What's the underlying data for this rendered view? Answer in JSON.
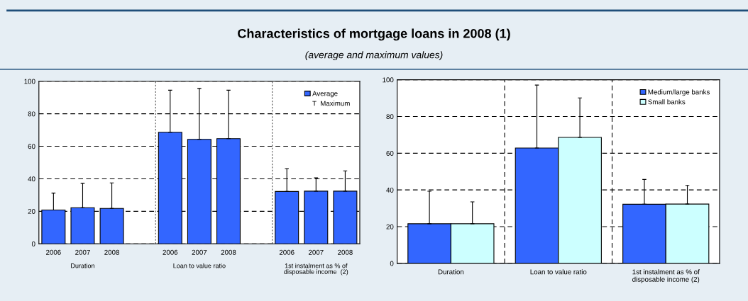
{
  "chart_data": [
    {
      "type": "bar",
      "title": "Characteristics of mortgage loans in 2008 (1)",
      "subtitle": "(average and maximum values)",
      "categories": [
        "2006",
        "2007",
        "2008",
        null,
        "2006",
        "2007",
        "2008",
        null,
        "2006",
        "2007",
        "2008"
      ],
      "series": [
        {
          "name": "Average",
          "color": "#3366ff",
          "values": [
            20.8,
            22.2,
            21.8,
            null,
            68.6,
            64.3,
            64.7,
            null,
            32.2,
            32.4,
            32.4
          ],
          "errors": [
            [
              20.8,
              31.2
            ],
            [
              22.2,
              37.2
            ],
            [
              21.8,
              37.5
            ],
            null,
            [
              68.6,
              94.5
            ],
            [
              64.3,
              95.6
            ],
            [
              64.7,
              94.5
            ],
            null,
            [
              32.2,
              46.3
            ],
            [
              32.4,
              40.6
            ],
            [
              32.4,
              44.9
            ]
          ]
        }
      ],
      "annotations": [
        "Duration",
        "Loan to value ratio",
        "1st instalment as % of\ndisposable income  (2)",
        "T  Maximum"
      ],
      "ylim": [
        0,
        100
      ],
      "yticks": [
        0,
        20,
        40,
        60,
        80,
        100
      ],
      "grid": "y",
      "legend": "top right"
    },
    {
      "type": "bar",
      "categories": [
        "Duration",
        "Loan to value ratio",
        "1st instalment as % of\ndisposable income (2)"
      ],
      "series": [
        {
          "name": "Medium/large banks",
          "color": "#3366ff",
          "values": [
            21.6,
            62.8,
            32.2
          ],
          "errors": [
            [
              21.6,
              39.3
            ],
            [
              62.8,
              97.1
            ],
            [
              32.2,
              45.7
            ]
          ]
        },
        {
          "name": "Small banks",
          "color": "#ccffff",
          "values": [
            21.6,
            68.6,
            32.3
          ],
          "errors": [
            [
              21.6,
              33.5
            ],
            [
              68.6,
              90.1
            ],
            [
              32.3,
              42.5
            ]
          ]
        }
      ],
      "ylim": [
        0,
        100
      ],
      "yticks": [
        0,
        20,
        40,
        60,
        80,
        100
      ],
      "grid": true,
      "legend": "top right"
    }
  ]
}
